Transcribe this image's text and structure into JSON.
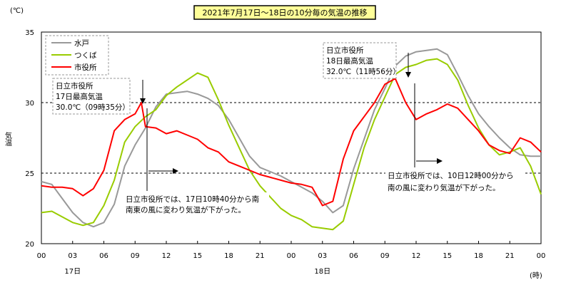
{
  "chart_data": {
    "type": "line",
    "title": "2021年7月17日～18日の10分毎の気温の推移",
    "ylabel": "気温",
    "yunit": "(℃)",
    "xunit": "(時)",
    "ylim": [
      20,
      35
    ],
    "yticks": [
      "20",
      "25",
      "30",
      "35"
    ],
    "xlim": [
      0,
      48
    ],
    "xtick_labels": [
      "00",
      "03",
      "06",
      "09",
      "12",
      "15",
      "18",
      "21",
      "00",
      "03",
      "06",
      "09",
      "12",
      "15",
      "18",
      "21",
      "00"
    ],
    "day_labels": [
      {
        "hour": 3,
        "label": "17日"
      },
      {
        "hour": 27,
        "label": "18日"
      }
    ],
    "reference_lines": [
      25,
      30
    ],
    "legend_position": "top-left",
    "series": [
      {
        "name": "水戸",
        "color": "#999999",
        "x": [
          0,
          1,
          2,
          3,
          4,
          5,
          6,
          7,
          8,
          9,
          10,
          11,
          12,
          13,
          14,
          15,
          16,
          17,
          18,
          19,
          20,
          21,
          22,
          23,
          24,
          25,
          26,
          27,
          28,
          29,
          30,
          31,
          32,
          33,
          34,
          35,
          36,
          37,
          38,
          39,
          40,
          41,
          42,
          43,
          44,
          45,
          46,
          47,
          48
        ],
        "y": [
          24.4,
          24.2,
          23.2,
          22.2,
          21.5,
          21.2,
          21.5,
          22.8,
          25.5,
          27.0,
          28.2,
          29.7,
          30.6,
          30.7,
          30.8,
          30.6,
          30.3,
          29.8,
          28.8,
          27.5,
          26.2,
          25.4,
          25.1,
          24.8,
          24.4,
          24.0,
          23.6,
          23.0,
          22.2,
          22.7,
          25.3,
          27.4,
          29.5,
          31.0,
          32.6,
          33.3,
          33.6,
          33.7,
          33.8,
          33.4,
          32.0,
          30.5,
          29.2,
          28.3,
          27.5,
          26.8,
          26.3,
          26.2,
          26.2
        ]
      },
      {
        "name": "つくば",
        "color": "#99CC00",
        "x": [
          0,
          1,
          2,
          3,
          4,
          5,
          6,
          7,
          8,
          9,
          10,
          11,
          12,
          13,
          14,
          15,
          16,
          17,
          18,
          19,
          20,
          21,
          22,
          23,
          24,
          25,
          26,
          27,
          28,
          29,
          30,
          31,
          32,
          33,
          34,
          35,
          36,
          37,
          38,
          39,
          40,
          41,
          42,
          43,
          44,
          45,
          46,
          47,
          48
        ],
        "y": [
          22.2,
          22.3,
          21.9,
          21.5,
          21.3,
          21.5,
          22.7,
          24.5,
          27.2,
          28.3,
          29.0,
          29.5,
          30.5,
          31.1,
          31.6,
          32.1,
          31.8,
          30.2,
          28.4,
          26.8,
          25.2,
          24.1,
          23.3,
          22.5,
          22.0,
          21.7,
          21.2,
          21.1,
          21.0,
          21.6,
          24.2,
          26.8,
          28.8,
          30.4,
          32.0,
          32.5,
          32.7,
          33.0,
          33.1,
          32.7,
          31.6,
          29.8,
          28.2,
          27.0,
          26.3,
          26.5,
          26.8,
          25.5,
          23.5
        ]
      },
      {
        "name": "市役所",
        "color": "#FF0000",
        "x": [
          0,
          1,
          2,
          3,
          4,
          5,
          6,
          7,
          8,
          9,
          9.6,
          10,
          11,
          12,
          13,
          14,
          15,
          16,
          17,
          18,
          19,
          20,
          21,
          22,
          23,
          24,
          25,
          26,
          27,
          28,
          29,
          30,
          31,
          32,
          33,
          34,
          35,
          36,
          37,
          38,
          39,
          40,
          41,
          42,
          43,
          44,
          45,
          46,
          47,
          48
        ],
        "y": [
          24.1,
          24.0,
          24.0,
          23.9,
          23.4,
          23.9,
          25.2,
          28.0,
          28.8,
          29.2,
          30.0,
          28.3,
          28.2,
          27.8,
          28.0,
          27.7,
          27.4,
          26.8,
          26.5,
          25.8,
          25.5,
          25.2,
          24.9,
          24.7,
          24.5,
          24.3,
          24.2,
          24.0,
          22.7,
          23.0,
          26.0,
          28.0,
          29.0,
          30.0,
          31.3,
          31.7,
          30.0,
          28.8,
          29.2,
          29.5,
          29.9,
          29.6,
          28.8,
          28.0,
          27.0,
          26.6,
          26.4,
          27.5,
          27.2,
          26.5
        ]
      }
    ],
    "annotations": [
      {
        "id": "ann17",
        "lines": [
          "日立市役所",
          "17日最高気温",
          "30.0℃（09時35分）"
        ],
        "dashed": true
      },
      {
        "id": "ann18",
        "lines": [
          "日立市役所",
          "18日最高気温",
          "32.0℃（11時56分）"
        ],
        "dashed": true
      },
      {
        "id": "wind17",
        "lines": [
          "日立市役所では、17日10時40分から南",
          "南東の風に変わり気温が下がった。"
        ],
        "dashed": false
      },
      {
        "id": "wind18",
        "lines": [
          "日立市役所では、10日12時00分から",
          "南の風に変わり気温が下がった。"
        ],
        "dashed": false
      }
    ]
  }
}
